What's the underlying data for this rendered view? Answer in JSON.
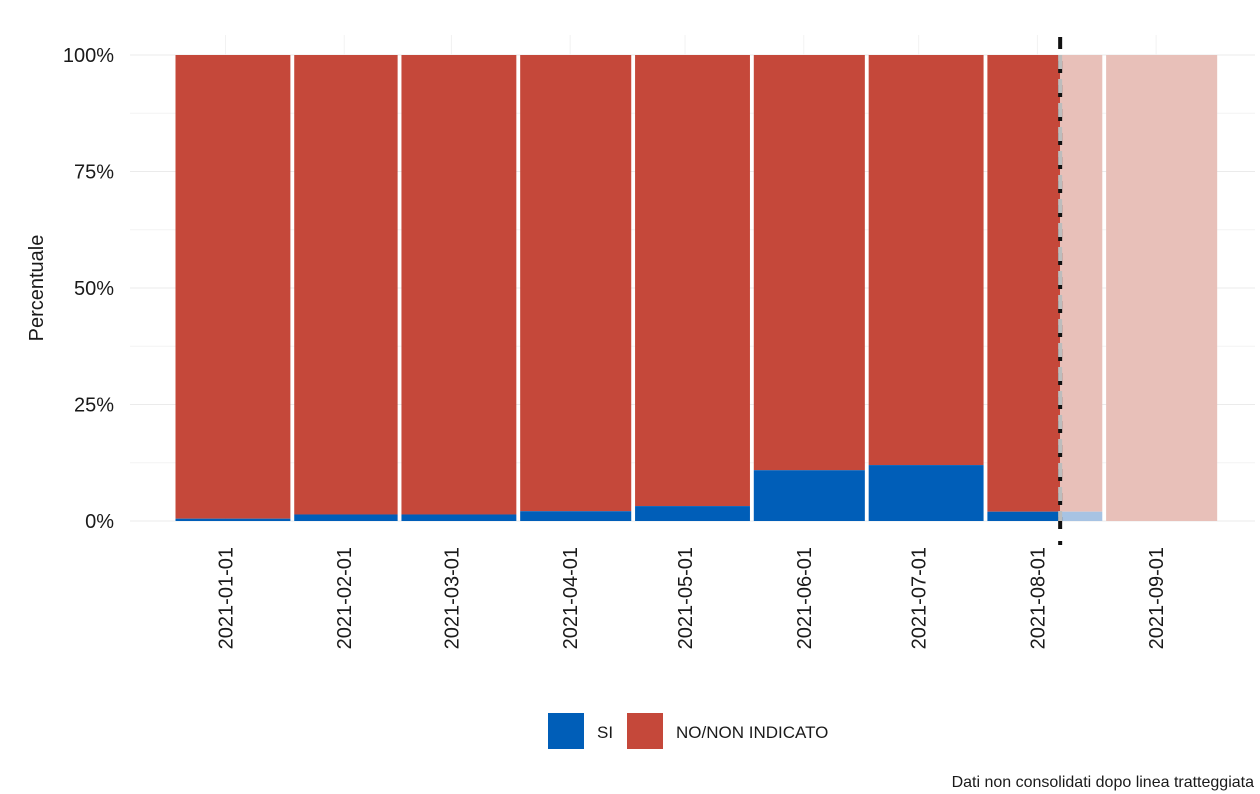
{
  "chart_data": {
    "type": "bar",
    "stacked": true,
    "normalized": true,
    "ylabel": "Percentuale",
    "xlabel": "",
    "ylim": [
      0,
      1
    ],
    "yticks": [
      "0%",
      "25%",
      "50%",
      "75%",
      "100%"
    ],
    "categories": [
      "2021-01-01",
      "2021-02-01",
      "2021-03-01",
      "2021-04-01",
      "2021-05-01",
      "2021-06-01",
      "2021-07-01",
      "2021-08-01",
      "2021-09-01"
    ],
    "category_dates": [
      "2021-01-01",
      "2021-02-01",
      "2021-03-01",
      "2021-04-01",
      "2021-05-01",
      "2021-06-01",
      "2021-07-01",
      "2021-08-01",
      "2021-09-01"
    ],
    "bar_segments": [
      {
        "start": "2021-01-01",
        "end": "2021-01-31",
        "si": 0.005,
        "consolidated": true
      },
      {
        "start": "2021-02-01",
        "end": "2021-02-28",
        "si": 0.014,
        "consolidated": true
      },
      {
        "start": "2021-03-01",
        "end": "2021-03-31",
        "si": 0.014,
        "consolidated": true
      },
      {
        "start": "2021-04-01",
        "end": "2021-04-30",
        "si": 0.021,
        "consolidated": true
      },
      {
        "start": "2021-05-01",
        "end": "2021-05-31",
        "si": 0.032,
        "consolidated": true
      },
      {
        "start": "2021-06-01",
        "end": "2021-06-30",
        "si": 0.109,
        "consolidated": true
      },
      {
        "start": "2021-07-01",
        "end": "2021-07-31",
        "si": 0.12,
        "consolidated": true
      },
      {
        "start": "2021-08-01",
        "end": "2021-08-20",
        "si": 0.02,
        "consolidated": true
      },
      {
        "start": "2021-08-20",
        "end": "2021-08-31",
        "si": 0.02,
        "consolidated": false
      },
      {
        "start": "2021-09-01",
        "end": "2021-09-30",
        "si": 0.0,
        "consolidated": false
      }
    ],
    "series": [
      {
        "name": "SI",
        "color": "#005eb8"
      },
      {
        "name": "NO/NON INDICATO",
        "color": "#c5483a"
      }
    ],
    "unconsolidated_colors": {
      "SI": "#a7c3e3",
      "NO/NON INDICATO": "#e8c0b9"
    },
    "cutoff_date": "2021-08-20",
    "legend_position": "bottom",
    "grid": true,
    "caption": "Dati non consolidati dopo linea tratteggiata"
  }
}
